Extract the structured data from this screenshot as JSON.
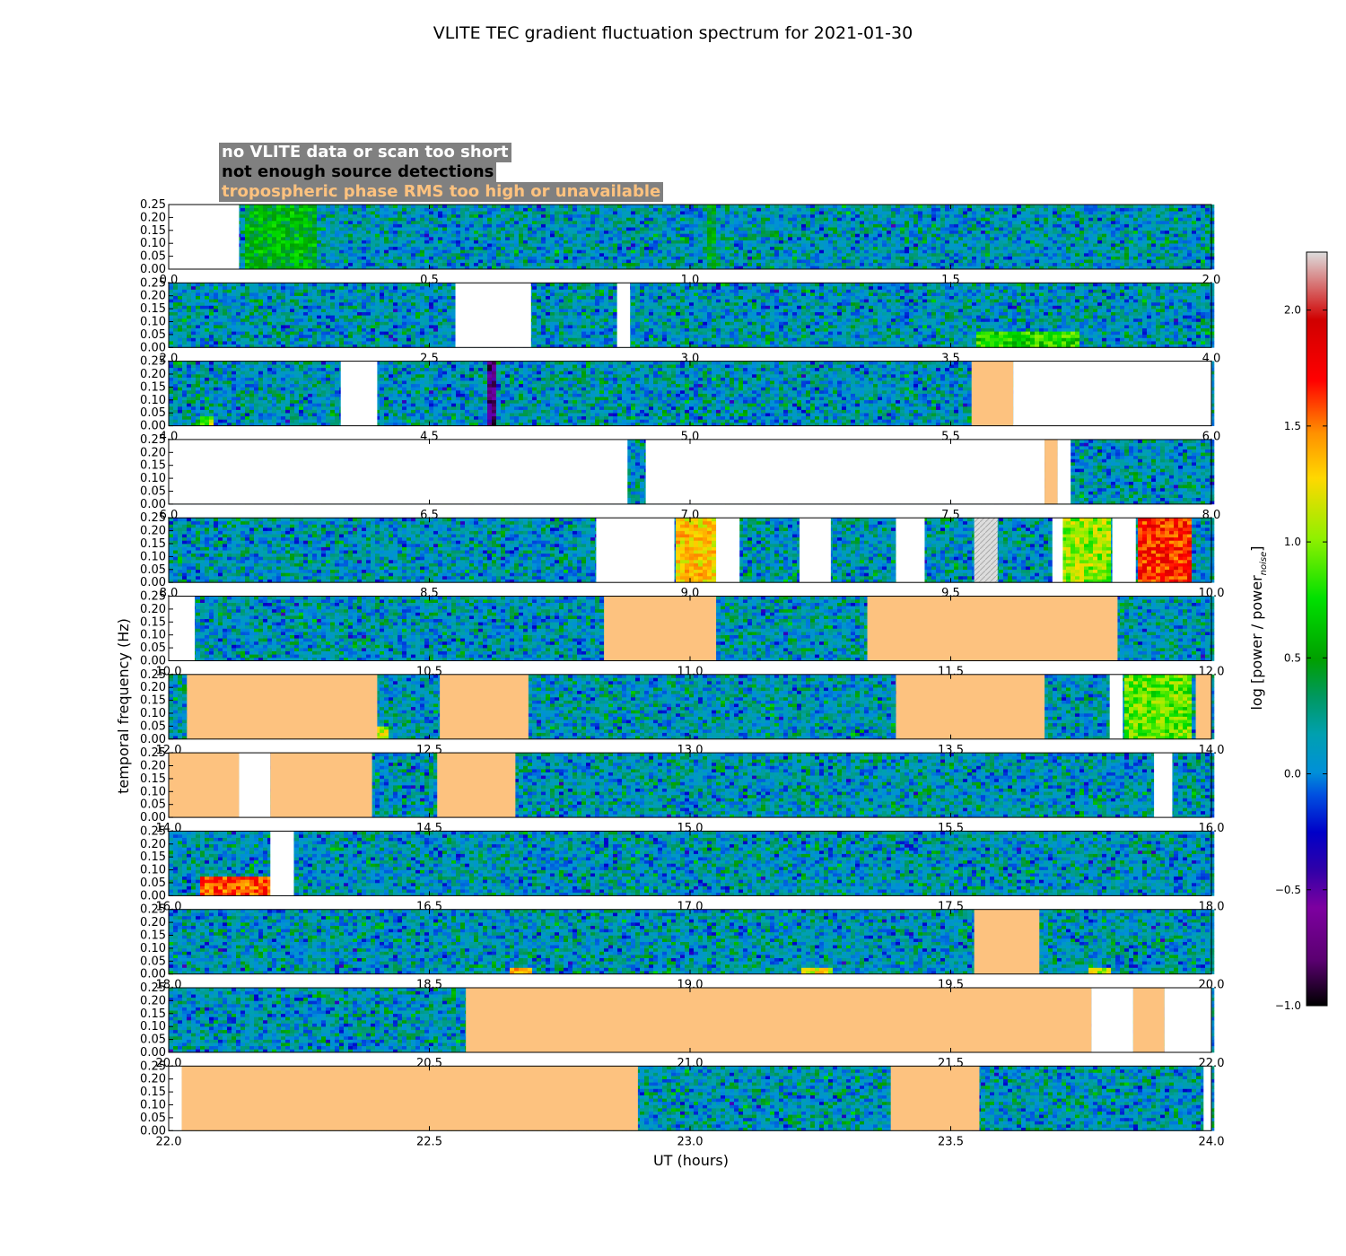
{
  "chart_data": {
    "type": "heatmap",
    "title": "VLITE TEC gradient fluctuation spectrum for 2021-01-30",
    "xlabel": "UT (hours)",
    "ylabel": "temporal frequency (Hz)",
    "colorbar_label": "log [power / power_noise]",
    "colorbar": {
      "range": [
        -1.0,
        2.25
      ],
      "ticks": [
        "−1.0",
        "−0.5",
        "0.0",
        "0.5",
        "1.0",
        "1.5",
        "2.0"
      ],
      "tick_values": [
        -1.0,
        -0.5,
        0.0,
        0.5,
        1.0,
        1.5,
        2.0
      ]
    },
    "ylim": [
      0,
      0.25
    ],
    "y_ticks": [
      "0.00",
      "0.05",
      "0.10",
      "0.15",
      "0.20",
      "0.25"
    ],
    "y_tick_values": [
      0,
      0.05,
      0.1,
      0.15,
      0.2,
      0.25
    ],
    "legend": {
      "placement": "top-left",
      "entries": [
        {
          "label": "no VLITE data or scan too short",
          "color": "#ffffff"
        },
        {
          "label": "not enough source detections",
          "color": "#000000"
        },
        {
          "label": "tropospheric phase RMS too high or unavailable",
          "color": "#fdc27f"
        }
      ]
    },
    "panels": [
      {
        "xlim": [
          0,
          2
        ],
        "x_ticks": [
          "0.0",
          "0.5",
          "1.0",
          "1.5",
          "2.0"
        ],
        "flags": [
          {
            "start": 0.0,
            "end": 0.135,
            "type": "nodata"
          }
        ],
        "hotspots": [
          {
            "start": 0.15,
            "end": 0.28,
            "fmax": 0.25,
            "level": 0.55
          },
          {
            "start": 1.03,
            "end": 1.05,
            "fmax": 0.25,
            "level": 0.45
          }
        ]
      },
      {
        "xlim": [
          2,
          4
        ],
        "x_ticks": [
          "2.0",
          "2.5",
          "3.0",
          "3.5",
          "4.0"
        ],
        "flags": [
          {
            "start": 2.55,
            "end": 2.695,
            "type": "nodata"
          },
          {
            "start": 2.86,
            "end": 2.885,
            "type": "nodata"
          }
        ],
        "hotspots": [
          {
            "start": 3.55,
            "end": 3.75,
            "fmax": 0.06,
            "level": 0.75
          }
        ]
      },
      {
        "xlim": [
          4,
          6
        ],
        "x_ticks": [
          "4.0",
          "4.5",
          "5.0",
          "5.5",
          "6.0"
        ],
        "flags": [
          {
            "start": 4.33,
            "end": 4.4,
            "type": "nodata"
          },
          {
            "start": 5.54,
            "end": 5.62,
            "type": "rms"
          },
          {
            "start": 5.62,
            "end": 6.0,
            "type": "nodata"
          }
        ],
        "hotspots": [
          {
            "start": 4.61,
            "end": 4.63,
            "fmax": 0.25,
            "level": -0.75
          },
          {
            "start": 4.06,
            "end": 4.09,
            "fmax": 0.04,
            "level": 1.0
          }
        ]
      },
      {
        "xlim": [
          6,
          8
        ],
        "x_ticks": [
          "6.0",
          "6.5",
          "7.0",
          "7.5",
          "8.0"
        ],
        "flags": [
          {
            "start": 6.0,
            "end": 6.88,
            "type": "nodata"
          },
          {
            "start": 6.915,
            "end": 7.68,
            "type": "nodata"
          },
          {
            "start": 7.68,
            "end": 7.705,
            "type": "rms"
          },
          {
            "start": 7.705,
            "end": 7.73,
            "type": "nodata"
          }
        ],
        "hotspots": []
      },
      {
        "xlim": [
          8,
          10
        ],
        "x_ticks": [
          "8.0",
          "8.5",
          "9.0",
          "9.5",
          "10.0"
        ],
        "flags": [
          {
            "start": 8.82,
            "end": 8.97,
            "type": "nodata"
          },
          {
            "start": 9.05,
            "end": 9.095,
            "type": "nodata"
          },
          {
            "start": 9.21,
            "end": 9.27,
            "type": "nodata"
          },
          {
            "start": 9.395,
            "end": 9.45,
            "type": "nodata"
          },
          {
            "start": 9.545,
            "end": 9.59,
            "type": "hatched"
          },
          {
            "start": 9.695,
            "end": 9.715,
            "type": "nodata"
          },
          {
            "start": 9.81,
            "end": 9.855,
            "type": "nodata"
          }
        ],
        "hotspots": [
          {
            "start": 8.97,
            "end": 9.05,
            "fmax": 0.25,
            "level": 1.3
          },
          {
            "start": 9.715,
            "end": 9.81,
            "fmax": 0.25,
            "level": 1.0
          },
          {
            "start": 9.855,
            "end": 9.965,
            "fmax": 0.25,
            "level": 1.7
          }
        ]
      },
      {
        "xlim": [
          10,
          12
        ],
        "x_ticks": [
          "10.0",
          "10.5",
          "11.0",
          "11.5",
          "12.0"
        ],
        "flags": [
          {
            "start": 10.0,
            "end": 10.05,
            "type": "nodata"
          },
          {
            "start": 10.835,
            "end": 11.05,
            "type": "rms"
          },
          {
            "start": 11.34,
            "end": 11.82,
            "type": "rms"
          }
        ],
        "hotspots": []
      },
      {
        "xlim": [
          12,
          14
        ],
        "x_ticks": [
          "12.0",
          "12.5",
          "13.0",
          "13.5",
          "14.0"
        ],
        "flags": [
          {
            "start": 12.035,
            "end": 12.4,
            "type": "rms"
          },
          {
            "start": 12.52,
            "end": 12.69,
            "type": "rms"
          },
          {
            "start": 13.395,
            "end": 13.68,
            "type": "rms"
          },
          {
            "start": 13.805,
            "end": 13.83,
            "type": "nodata"
          },
          {
            "start": 13.97,
            "end": 14.0,
            "type": "rms"
          }
        ],
        "hotspots": [
          {
            "start": 13.83,
            "end": 13.965,
            "fmax": 0.25,
            "level": 0.9
          },
          {
            "start": 12.4,
            "end": 12.42,
            "fmax": 0.05,
            "level": 1.1
          }
        ]
      },
      {
        "xlim": [
          14,
          16
        ],
        "x_ticks": [
          "14.0",
          "14.5",
          "15.0",
          "15.5",
          "16.0"
        ],
        "flags": [
          {
            "start": 14.0,
            "end": 14.135,
            "type": "rms"
          },
          {
            "start": 14.135,
            "end": 14.195,
            "type": "nodata"
          },
          {
            "start": 14.195,
            "end": 14.39,
            "type": "rms"
          },
          {
            "start": 14.515,
            "end": 14.665,
            "type": "rms"
          },
          {
            "start": 15.89,
            "end": 15.925,
            "type": "nodata"
          }
        ],
        "hotspots": []
      },
      {
        "xlim": [
          16,
          18
        ],
        "x_ticks": [
          "16.0",
          "16.5",
          "17.0",
          "17.5",
          "18.0"
        ],
        "flags": [
          {
            "start": 16.195,
            "end": 16.24,
            "type": "nodata"
          }
        ],
        "hotspots": [
          {
            "start": 16.06,
            "end": 16.195,
            "fmax": 0.08,
            "level": 1.6
          }
        ]
      },
      {
        "xlim": [
          18,
          20
        ],
        "x_ticks": [
          "18.0",
          "18.5",
          "19.0",
          "19.5",
          "20.0"
        ],
        "flags": [
          {
            "start": 19.545,
            "end": 19.67,
            "type": "rms"
          }
        ],
        "hotspots": [
          {
            "start": 18.65,
            "end": 18.7,
            "fmax": 0.02,
            "level": 1.4
          },
          {
            "start": 19.21,
            "end": 19.27,
            "fmax": 0.02,
            "level": 1.2
          },
          {
            "start": 19.76,
            "end": 19.81,
            "fmax": 0.02,
            "level": 1.1
          }
        ]
      },
      {
        "xlim": [
          20,
          22
        ],
        "x_ticks": [
          "20.0",
          "20.5",
          "21.0",
          "21.5",
          "22.0"
        ],
        "flags": [
          {
            "start": 20.57,
            "end": 21.77,
            "type": "rms"
          },
          {
            "start": 21.77,
            "end": 21.85,
            "type": "nodata"
          },
          {
            "start": 21.85,
            "end": 21.91,
            "type": "rms"
          },
          {
            "start": 21.91,
            "end": 22.0,
            "type": "nodata"
          }
        ],
        "hotspots": []
      },
      {
        "xlim": [
          22,
          24
        ],
        "x_ticks": [
          "22.0",
          "22.5",
          "23.0",
          "23.5",
          "24.0"
        ],
        "flags": [
          {
            "start": 22.0,
            "end": 22.025,
            "type": "nodata"
          },
          {
            "start": 22.025,
            "end": 22.9,
            "type": "rms"
          },
          {
            "start": 23.385,
            "end": 23.555,
            "type": "rms"
          },
          {
            "start": 23.985,
            "end": 24.0,
            "type": "nodata"
          }
        ],
        "hotspots": []
      }
    ]
  }
}
